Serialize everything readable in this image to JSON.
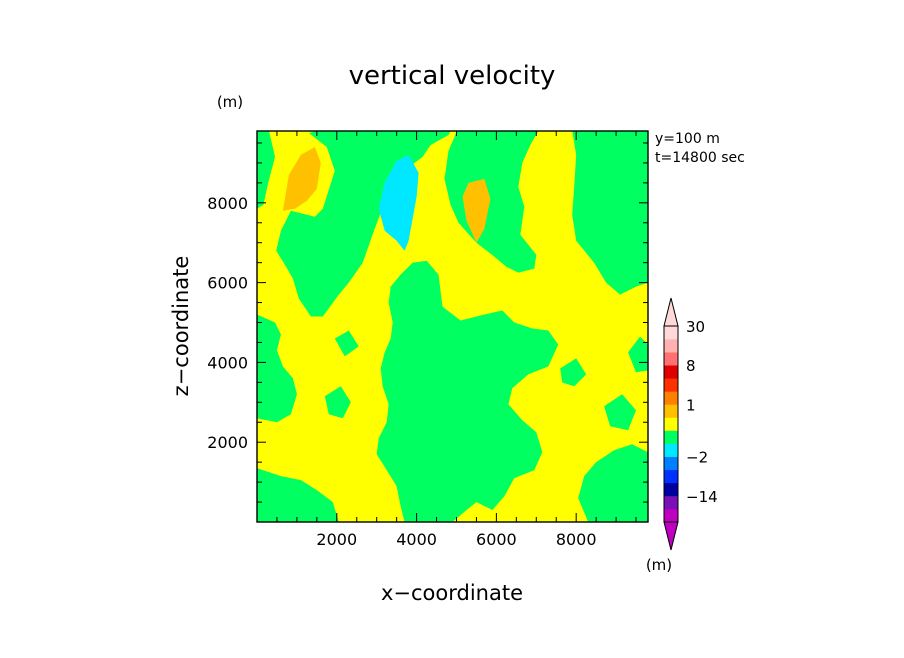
{
  "chart_data": {
    "type": "heatmap",
    "title": "vertical velocity",
    "xlabel": "x−coordinate",
    "ylabel": "z−coordinate",
    "x_unit": "(m)",
    "y_unit": "(m)",
    "xlim": [
      0,
      9800
    ],
    "ylim": [
      0,
      9800
    ],
    "xticks": [
      2000,
      4000,
      6000,
      8000
    ],
    "yticks": [
      2000,
      4000,
      6000,
      8000
    ],
    "xtick_labels": [
      "2000",
      "4000",
      "6000",
      "8000"
    ],
    "ytick_labels": [
      "2000",
      "4000",
      "6000",
      "8000"
    ],
    "grid": false,
    "annotations": [
      "y=100 m",
      "t=14800 sec"
    ],
    "colorbar": {
      "unit": "(m)",
      "levels": [
        -30,
        -20,
        -14,
        -8,
        -4,
        -2,
        -1,
        -0.5,
        0.5,
        1,
        2,
        4,
        8,
        14,
        20,
        30
      ],
      "colors": [
        "#c000c0",
        "#7a10b8",
        "#0000a0",
        "#0030ff",
        "#0080ff",
        "#00e8ff",
        "#00ff60",
        "#ffff00",
        "#ffc000",
        "#ff8000",
        "#ff3000",
        "#e00000",
        "#ff7070",
        "#ffb0b0",
        "#ffd8d8"
      ],
      "under_color": "#c000c0",
      "over_color": "#ffd8d8",
      "tick_labels": [
        "30",
        "8",
        "1",
        "−2",
        "−14"
      ],
      "tick_values": [
        30,
        8,
        1,
        -2,
        -14
      ]
    },
    "background_color": "#ffff00",
    "regions": [
      {
        "name": "green",
        "color": "#00ff60",
        "polygons": [
          [
            [
              0,
              9800
            ],
            [
              300,
              9800
            ],
            [
              450,
              9150
            ],
            [
              280,
              8500
            ],
            [
              160,
              7950
            ],
            [
              0,
              7850
            ]
          ],
          [
            [
              1500,
              9800
            ],
            [
              1300,
              9750
            ],
            [
              1750,
              9400
            ],
            [
              1950,
              8800
            ],
            [
              1650,
              7850
            ],
            [
              1450,
              7650
            ],
            [
              850,
              7800
            ],
            [
              600,
              7300
            ],
            [
              480,
              6800
            ],
            [
              700,
              6450
            ],
            [
              900,
              6100
            ],
            [
              1050,
              5600
            ],
            [
              1350,
              5150
            ],
            [
              1650,
              5150
            ],
            [
              2050,
              5700
            ],
            [
              2300,
              6000
            ],
            [
              2650,
              6500
            ],
            [
              2950,
              7350
            ],
            [
              3250,
              8150
            ],
            [
              3750,
              8850
            ],
            [
              4150,
              9150
            ],
            [
              4350,
              9450
            ],
            [
              4800,
              9700
            ],
            [
              4850,
              9800
            ]
          ],
          [
            [
              5000,
              9800
            ],
            [
              4950,
              9650
            ],
            [
              4800,
              9300
            ],
            [
              4700,
              8600
            ],
            [
              4850,
              7950
            ],
            [
              5050,
              7500
            ],
            [
              5500,
              7000
            ],
            [
              5950,
              6650
            ],
            [
              6250,
              6400
            ],
            [
              6550,
              6250
            ],
            [
              6950,
              6350
            ],
            [
              7000,
              6700
            ],
            [
              6600,
              7200
            ],
            [
              6700,
              7900
            ],
            [
              6550,
              8400
            ],
            [
              6650,
              9000
            ],
            [
              6850,
              9450
            ],
            [
              7050,
              9800
            ]
          ],
          [
            [
              7900,
              9800
            ],
            [
              8000,
              9200
            ],
            [
              7950,
              8400
            ],
            [
              7900,
              7700
            ],
            [
              8000,
              7050
            ],
            [
              8450,
              6500
            ],
            [
              8750,
              6000
            ],
            [
              9100,
              5700
            ],
            [
              9500,
              5900
            ],
            [
              9800,
              6000
            ],
            [
              9800,
              9800
            ]
          ],
          [
            [
              3600,
              6200
            ],
            [
              3900,
              6500
            ],
            [
              4250,
              6550
            ],
            [
              4550,
              6200
            ],
            [
              4650,
              5400
            ],
            [
              5100,
              5050
            ],
            [
              5700,
              5200
            ],
            [
              6150,
              5300
            ],
            [
              6450,
              5000
            ],
            [
              6900,
              4850
            ],
            [
              7300,
              4800
            ],
            [
              7550,
              4450
            ],
            [
              7300,
              3900
            ],
            [
              6800,
              3700
            ],
            [
              6400,
              3350
            ],
            [
              6300,
              2950
            ],
            [
              6650,
              2550
            ],
            [
              7000,
              2250
            ],
            [
              7150,
              1750
            ],
            [
              6950,
              1300
            ],
            [
              6450,
              1100
            ],
            [
              6200,
              650
            ],
            [
              5900,
              300
            ],
            [
              5500,
              500
            ],
            [
              5250,
              300
            ],
            [
              4900,
              0
            ],
            [
              3700,
              0
            ],
            [
              3600,
              400
            ],
            [
              3500,
              900
            ],
            [
              3250,
              1300
            ],
            [
              3000,
              1700
            ],
            [
              3050,
              2100
            ],
            [
              3250,
              2500
            ],
            [
              3300,
              2950
            ],
            [
              3150,
              3400
            ],
            [
              3100,
              3850
            ],
            [
              3200,
              4250
            ],
            [
              3350,
              4600
            ],
            [
              3400,
              5000
            ],
            [
              3300,
              5500
            ],
            [
              3350,
              5900
            ]
          ],
          [
            [
              0,
              0
            ],
            [
              2050,
              0
            ],
            [
              1900,
              500
            ],
            [
              1500,
              800
            ],
            [
              1100,
              1050
            ],
            [
              600,
              1150
            ],
            [
              0,
              1350
            ]
          ],
          [
            [
              0,
              5200
            ],
            [
              450,
              5000
            ],
            [
              600,
              4700
            ],
            [
              500,
              4300
            ],
            [
              650,
              3900
            ],
            [
              900,
              3600
            ],
            [
              1000,
              3200
            ],
            [
              850,
              2700
            ],
            [
              500,
              2500
            ],
            [
              0,
              2600
            ]
          ],
          [
            [
              8300,
              0
            ],
            [
              9800,
              0
            ],
            [
              9800,
              1750
            ],
            [
              9400,
              1950
            ],
            [
              8950,
              1800
            ],
            [
              8500,
              1500
            ],
            [
              8200,
              1150
            ],
            [
              8050,
              600
            ]
          ],
          [
            [
              1700,
              3150
            ],
            [
              2100,
              3400
            ],
            [
              2350,
              3000
            ],
            [
              2150,
              2600
            ],
            [
              1800,
              2700
            ]
          ],
          [
            [
              7600,
              3850
            ],
            [
              8000,
              4100
            ],
            [
              8250,
              3700
            ],
            [
              7950,
              3400
            ],
            [
              7650,
              3500
            ]
          ],
          [
            [
              8700,
              2900
            ],
            [
              9150,
              3200
            ],
            [
              9500,
              2800
            ],
            [
              9300,
              2300
            ],
            [
              8850,
              2400
            ]
          ],
          [
            [
              9300,
              4250
            ],
            [
              9600,
              4650
            ],
            [
              9800,
              4450
            ],
            [
              9800,
              3800
            ],
            [
              9500,
              3750
            ]
          ],
          [
            [
              1950,
              4600
            ],
            [
              2300,
              4800
            ],
            [
              2550,
              4400
            ],
            [
              2200,
              4150
            ]
          ],
          [
            [
              5600,
              1300
            ],
            [
              6000,
              1500
            ],
            [
              6250,
              1150
            ],
            [
              5900,
              900
            ]
          ],
          [
            [
              4400,
              2200
            ],
            [
              4750,
              2500
            ],
            [
              5000,
              2150
            ],
            [
              4650,
              1900
            ]
          ]
        ]
      },
      {
        "name": "cyan",
        "color": "#00e8ff",
        "polygons": [
          [
            [
              3050,
              7850
            ],
            [
              3200,
              8500
            ],
            [
              3500,
              9050
            ],
            [
              3800,
              9200
            ],
            [
              4050,
              8750
            ],
            [
              4000,
              8150
            ],
            [
              3900,
              7600
            ],
            [
              3800,
              7050
            ],
            [
              3700,
              6800
            ],
            [
              3500,
              7050
            ],
            [
              3200,
              7300
            ]
          ]
        ]
      },
      {
        "name": "orange",
        "color": "#ffc000",
        "polygons": [
          [
            [
              650,
              7800
            ],
            [
              800,
              8700
            ],
            [
              1100,
              9200
            ],
            [
              1450,
              9400
            ],
            [
              1600,
              9000
            ],
            [
              1500,
              8350
            ],
            [
              1250,
              8050
            ],
            [
              950,
              7850
            ]
          ],
          [
            [
              5150,
              8150
            ],
            [
              5300,
              8500
            ],
            [
              5700,
              8600
            ],
            [
              5850,
              8100
            ],
            [
              5700,
              7350
            ],
            [
              5500,
              7000
            ],
            [
              5250,
              7550
            ]
          ]
        ]
      }
    ]
  }
}
